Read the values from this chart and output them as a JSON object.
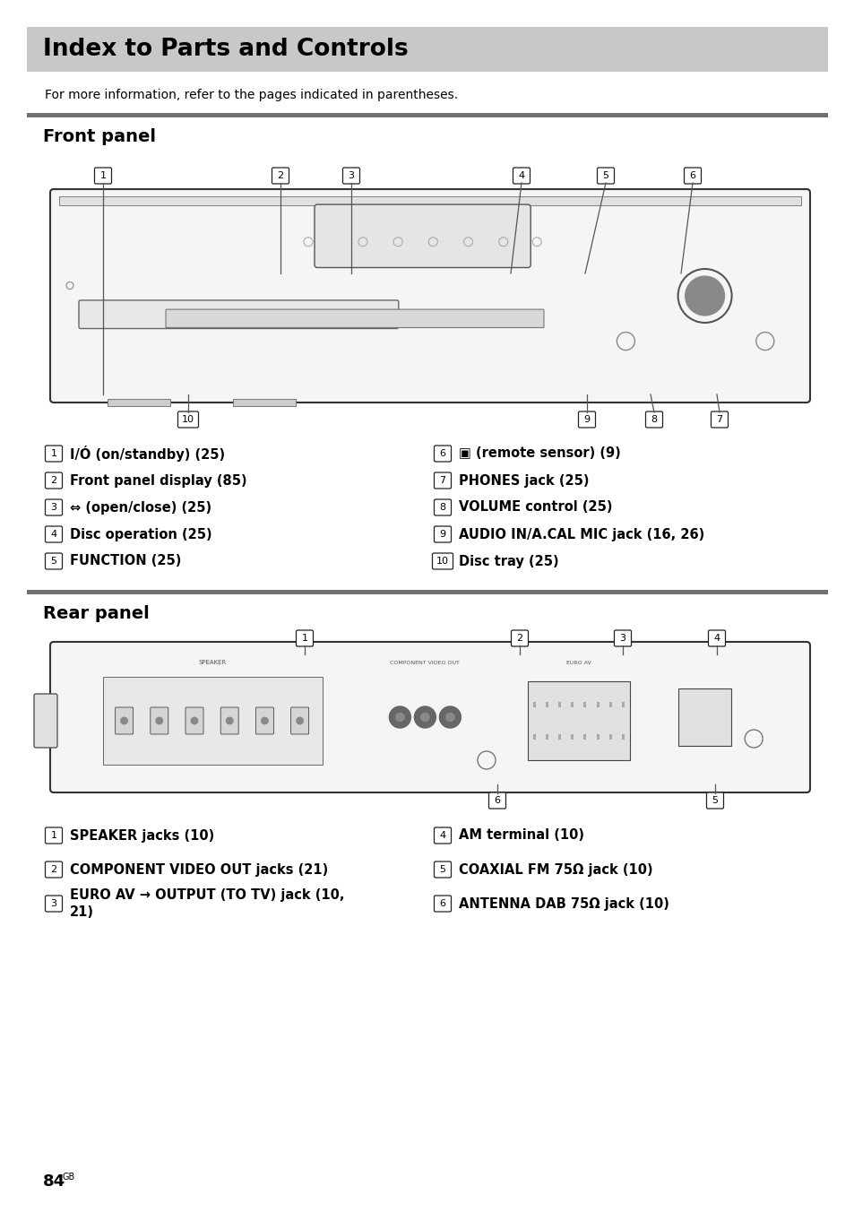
{
  "title": "Index to Parts and Controls",
  "title_bg": "#c8c8c8",
  "subtitle": "For more information, refer to the pages indicated in parentheses.",
  "section1": "Front panel",
  "section2": "Rear panel",
  "front_items_left": [
    [
      "1",
      "I/Ó (on/standby) (25)"
    ],
    [
      "2",
      "Front panel display (85)"
    ],
    [
      "3",
      "⇔ (open/close) (25)"
    ],
    [
      "4",
      "Disc operation (25)"
    ],
    [
      "5",
      "FUNCTION (25)"
    ]
  ],
  "front_items_right": [
    [
      "6",
      "▣ (remote sensor) (9)"
    ],
    [
      "7",
      "PHONES jack (25)"
    ],
    [
      "8",
      "VOLUME control (25)"
    ],
    [
      "9",
      "AUDIO IN/A.CAL MIC jack (16, 26)"
    ],
    [
      "10",
      "Disc tray (25)"
    ]
  ],
  "rear_items_left": [
    [
      "1",
      "SPEAKER jacks (10)"
    ],
    [
      "2",
      "COMPONENT VIDEO OUT jacks (21)"
    ],
    [
      "3",
      "EURO AV → OUTPUT (TO TV) jack (10,\n21)"
    ]
  ],
  "rear_items_right": [
    [
      "4",
      "AM terminal (10)"
    ],
    [
      "5",
      "COAXIAL FM 75Ω jack (10)"
    ],
    [
      "6",
      "ANTENNA DAB 75Ω jack (10)"
    ]
  ],
  "page_number": "84",
  "page_suffix": "GB",
  "bg_color": "#ffffff",
  "text_color": "#000000",
  "section_bar_color": "#707070",
  "title_bar_color": "#c8c8c8"
}
